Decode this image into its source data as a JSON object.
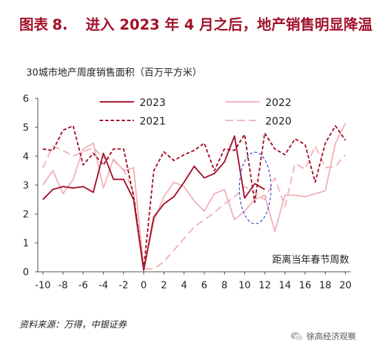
{
  "header": {
    "label": "图表",
    "number": "8.",
    "title": "进入 2023 年 4 月之后，地产销售明显降温"
  },
  "chart_data": {
    "type": "line",
    "title": "30城市地产周度销售面积（百万平方米）",
    "xlabel": "距离当年春节周数",
    "ylabel": "",
    "xlim": [
      -10.5,
      20.5
    ],
    "ylim": [
      0,
      6
    ],
    "x_ticks": [
      -10,
      -8,
      -6,
      -4,
      -2,
      0,
      2,
      4,
      6,
      8,
      10,
      12,
      14,
      16,
      18,
      20
    ],
    "y_ticks": [
      0,
      1,
      2,
      3,
      4,
      5,
      6
    ],
    "x_tick_labels": [
      "-10",
      "-8",
      "-6",
      "-4",
      "-2",
      "0",
      "2",
      "4",
      "6",
      "8",
      "10",
      "12",
      "14",
      "16",
      "18",
      "20"
    ],
    "y_tick_labels": [
      "0",
      "1",
      "2",
      "3",
      "4",
      "5",
      "6"
    ],
    "grid": false,
    "legend": "top",
    "series": [
      {
        "name": "2023",
        "color": "#a3122a",
        "style": "solid",
        "x": [
          -10,
          -9,
          -8,
          -7,
          -6,
          -5,
          -4,
          -3,
          -2,
          -1,
          0,
          1,
          2,
          3,
          4,
          5,
          6,
          7,
          8,
          9,
          10,
          11,
          12
        ],
        "values": [
          2.5,
          2.85,
          2.95,
          2.9,
          2.95,
          2.75,
          4.1,
          3.2,
          3.2,
          2.5,
          0.05,
          1.9,
          2.35,
          2.6,
          3.1,
          3.65,
          3.25,
          3.4,
          3.8,
          4.7,
          2.55,
          3.05,
          2.85
        ]
      },
      {
        "name": "2022",
        "color": "#f2b3ba",
        "style": "solid",
        "x": [
          -10,
          -9,
          -8,
          -7,
          -6,
          -5,
          -4,
          -3,
          -2,
          -1,
          0,
          1,
          2,
          3,
          4,
          5,
          6,
          7,
          8,
          9,
          10,
          11,
          12,
          13,
          14,
          15,
          16,
          17,
          18,
          19,
          20
        ],
        "values": [
          3.0,
          3.5,
          2.7,
          3.2,
          4.25,
          4.45,
          2.9,
          3.9,
          3.5,
          3.6,
          0.1,
          1.75,
          2.6,
          3.1,
          2.95,
          2.45,
          2.1,
          2.7,
          2.85,
          1.8,
          2.1,
          2.5,
          2.65,
          1.4,
          2.65,
          2.65,
          2.6,
          2.7,
          2.8,
          4.45,
          5.15
        ]
      },
      {
        "name": "2021",
        "color": "#a3122a",
        "style": "dashed",
        "x": [
          -10,
          -9,
          -8,
          -7,
          -6,
          -5,
          -4,
          -3,
          -2,
          -1,
          0,
          1,
          2,
          3,
          4,
          5,
          6,
          7,
          8,
          9,
          10,
          11,
          12,
          13,
          14,
          15,
          16,
          17,
          18,
          19,
          20
        ],
        "values": [
          4.25,
          4.2,
          4.9,
          5.05,
          3.7,
          4.1,
          3.7,
          4.25,
          4.25,
          2.6,
          0.1,
          3.5,
          4.15,
          3.85,
          4.05,
          4.2,
          4.45,
          3.5,
          4.25,
          4.2,
          4.75,
          2.4,
          4.8,
          4.25,
          4.05,
          4.6,
          4.4,
          3.1,
          4.45,
          5.05,
          4.55
        ]
      },
      {
        "name": "2020",
        "color": "#f2b3ba",
        "style": "long-dash",
        "x": [
          -10,
          -9,
          -8,
          -7,
          -6,
          -5,
          -4,
          -3,
          -2,
          -1,
          0,
          1,
          2,
          3,
          4,
          5,
          6,
          7,
          8,
          9,
          10,
          11,
          12,
          13,
          14,
          15,
          16,
          17,
          18,
          19,
          20
        ],
        "values": [
          3.6,
          4.35,
          4.2,
          4.0,
          4.15,
          4.3,
          3.95,
          3.85,
          3.55,
          2.75,
          0.1,
          0.1,
          0.35,
          0.75,
          1.15,
          1.55,
          1.8,
          2.05,
          2.35,
          2.6,
          2.95,
          2.75,
          2.5,
          3.25,
          2.25,
          3.75,
          3.55,
          4.35,
          3.6,
          3.65,
          4.05
        ]
      }
    ]
  },
  "source": "资料来源：万得，中银证券",
  "watermark": "徐高经济观察"
}
